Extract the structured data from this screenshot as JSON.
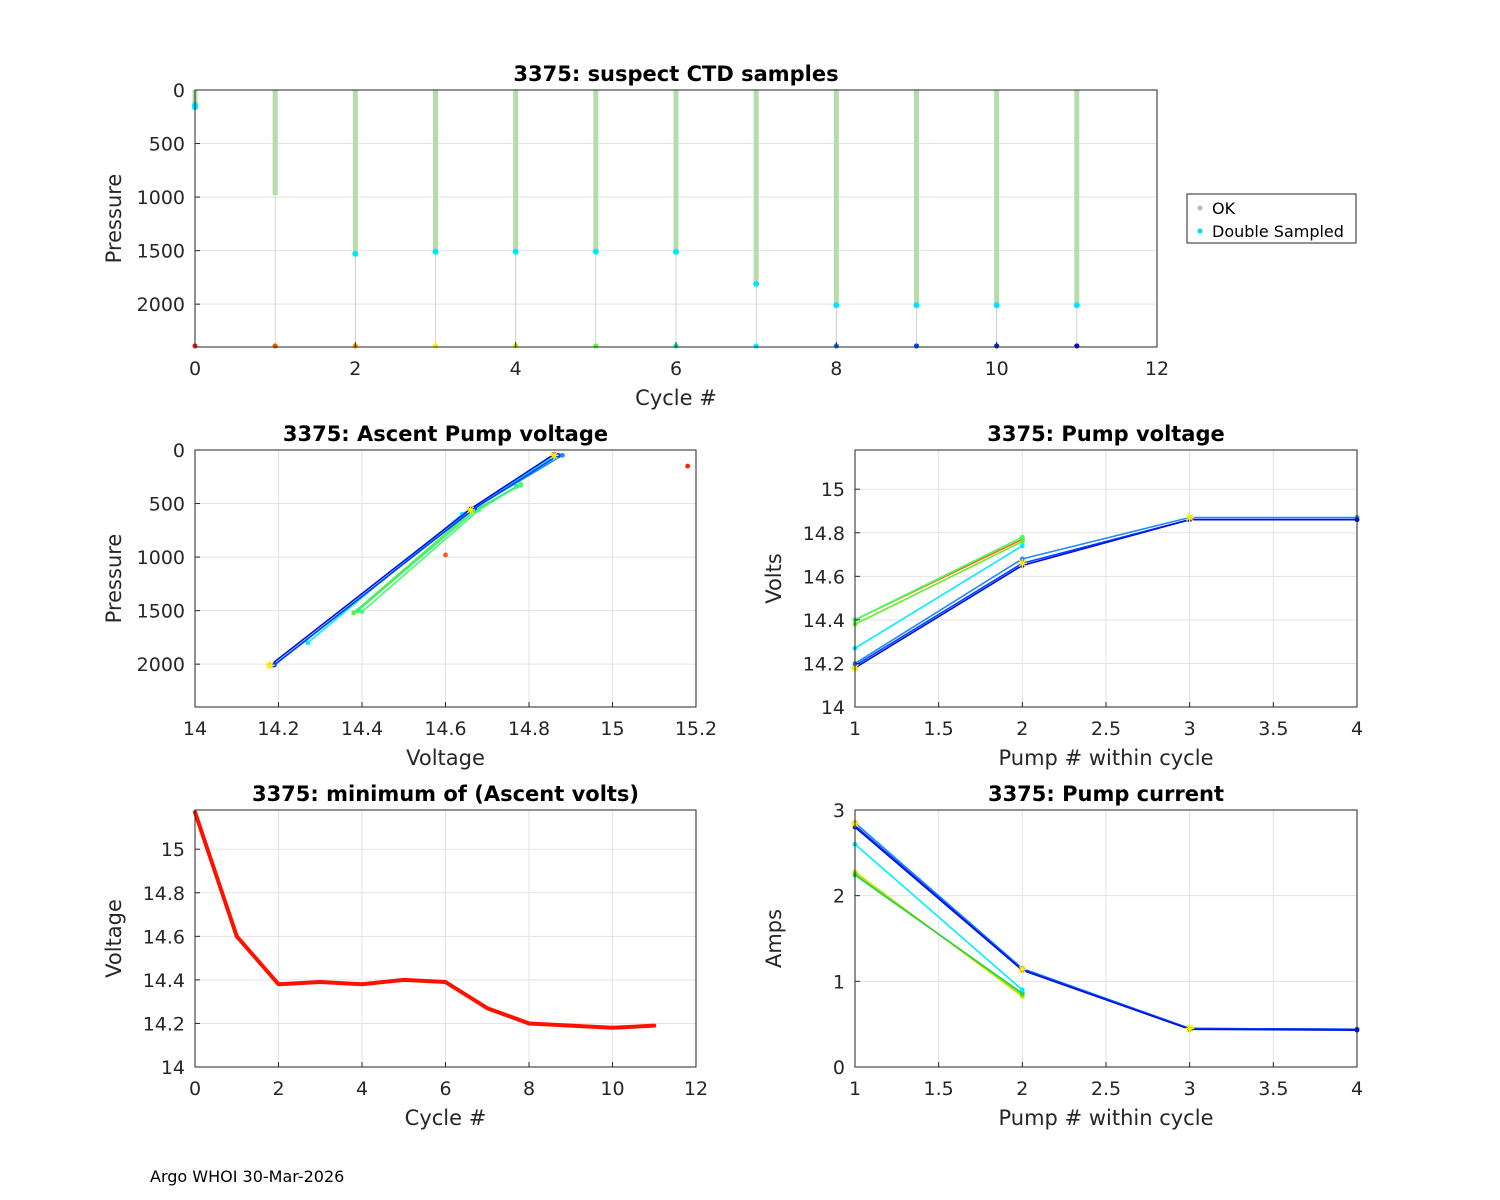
{
  "footer": "Argo WHOI 30-Mar-2026",
  "legend": {
    "entries": [
      {
        "label": "OK",
        "color": "#bdbdbd"
      },
      {
        "label": "Double Sampled",
        "color": "#00e5ff"
      }
    ]
  },
  "chart_data": [
    {
      "id": "ctd",
      "type": "scatter",
      "title": "3375: suspect CTD samples",
      "xlabel": "Cycle #",
      "ylabel": "Pressure",
      "xlim": [
        0,
        12
      ],
      "ylim": [
        0,
        2400
      ],
      "y_reversed": true,
      "xticks": [
        0,
        2,
        4,
        6,
        8,
        10,
        12
      ],
      "yticks": [
        0,
        500,
        1000,
        1500,
        2000
      ],
      "grid": true,
      "legend_position": "outside-right",
      "profile_color": "#b5dcaa",
      "ok_color": "#bdbdbd",
      "double_sampled_color": "#00e5ff",
      "profiles": [
        {
          "cycle": 0,
          "max_pressure": 150,
          "double_sampled": [
            140,
            160
          ]
        },
        {
          "cycle": 1,
          "max_pressure": 980,
          "double_sampled": []
        },
        {
          "cycle": 2,
          "max_pressure": 1530,
          "double_sampled": [
            1530
          ]
        },
        {
          "cycle": 3,
          "max_pressure": 1510,
          "double_sampled": [
            1510
          ]
        },
        {
          "cycle": 4,
          "max_pressure": 1510,
          "double_sampled": [
            1510
          ]
        },
        {
          "cycle": 5,
          "max_pressure": 1510,
          "double_sampled": [
            1510
          ]
        },
        {
          "cycle": 6,
          "max_pressure": 1510,
          "double_sampled": [
            1510
          ]
        },
        {
          "cycle": 7,
          "max_pressure": 1810,
          "double_sampled": [
            1810
          ]
        },
        {
          "cycle": 8,
          "max_pressure": 2010,
          "double_sampled": [
            2010
          ]
        },
        {
          "cycle": 9,
          "max_pressure": 2010,
          "double_sampled": [
            2010
          ]
        },
        {
          "cycle": 10,
          "max_pressure": 2010,
          "double_sampled": [
            2010
          ]
        },
        {
          "cycle": 11,
          "max_pressure": 2010,
          "double_sampled": [
            2010
          ]
        }
      ],
      "bottom_markers": {
        "pressure": 2390,
        "colors": [
          "#ff1a1a",
          "#ff5500",
          "#ff9900",
          "#ffee00",
          "#aaff00",
          "#55ff33",
          "#00ff99",
          "#00eeff",
          "#0077ff",
          "#0044ff",
          "#0022ee",
          "#0000dd"
        ]
      }
    },
    {
      "id": "ascent",
      "type": "line",
      "title": "3375: Ascent Pump voltage",
      "xlabel": "Voltage",
      "ylabel": "Pressure",
      "xlim": [
        14,
        15.2
      ],
      "ylim": [
        0,
        2400
      ],
      "y_reversed": true,
      "xticks": [
        14,
        14.2,
        14.4,
        14.6,
        14.8,
        15,
        15.2
      ],
      "yticks": [
        0,
        500,
        1000,
        1500,
        2000
      ],
      "grid": true,
      "series": [
        {
          "color": "#ff2200",
          "points": [
            [
              15.18,
              150
            ]
          ]
        },
        {
          "color": "#ff5522",
          "points": [
            [
              14.6,
              980
            ]
          ]
        },
        {
          "color": "#66ee33",
          "points": [
            [
              14.38,
              1520
            ],
            [
              14.66,
              580
            ],
            [
              14.78,
              330
            ]
          ]
        },
        {
          "color": "#44ff66",
          "points": [
            [
              14.4,
              1510
            ],
            [
              14.68,
              560
            ],
            [
              14.78,
              320
            ]
          ]
        },
        {
          "color": "#33ee88",
          "points": [
            [
              14.39,
              1500
            ],
            [
              14.67,
              570
            ],
            [
              14.77,
              340
            ]
          ]
        },
        {
          "color": "#00eeff",
          "points": [
            [
              14.27,
              1800
            ],
            [
              14.64,
              600
            ],
            [
              14.86,
              60
            ]
          ]
        },
        {
          "color": "#2288ff",
          "points": [
            [
              14.19,
              2010
            ],
            [
              14.67,
              540
            ],
            [
              14.88,
              50
            ]
          ]
        },
        {
          "color": "#0044ff",
          "points": [
            [
              14.19,
              2005
            ],
            [
              14.67,
              545
            ],
            [
              14.87,
              50
            ]
          ]
        },
        {
          "color": "#0011dd",
          "points": [
            [
              14.18,
              2010
            ],
            [
              14.66,
              550
            ],
            [
              14.86,
              40
            ]
          ]
        }
      ],
      "markers": [
        {
          "x": 14.18,
          "y": 2010,
          "color": "#ffee00"
        },
        {
          "x": 14.66,
          "y": 560,
          "color": "#ffee00"
        },
        {
          "x": 14.86,
          "y": 50,
          "color": "#ffee00"
        }
      ]
    },
    {
      "id": "pumpv",
      "type": "line",
      "title": "3375: Pump voltage",
      "xlabel": "Pump # within cycle",
      "ylabel": "Volts",
      "xlim": [
        1,
        4
      ],
      "ylim": [
        14,
        15.18
      ],
      "xticks": [
        1,
        1.5,
        2,
        2.5,
        3,
        3.5,
        4
      ],
      "yticks": [
        14,
        14.2,
        14.4,
        14.6,
        14.8,
        15
      ],
      "grid": true,
      "series": [
        {
          "color": "#ff6600",
          "points": [
            [
              1,
              14.4
            ],
            [
              2,
              14.77
            ]
          ]
        },
        {
          "color": "#66ee33",
          "points": [
            [
              1,
              14.38
            ],
            [
              2,
              14.76
            ]
          ]
        },
        {
          "color": "#44ff66",
          "points": [
            [
              1,
              14.4
            ],
            [
              2,
              14.78
            ]
          ]
        },
        {
          "color": "#00eeff",
          "points": [
            [
              1,
              14.27
            ],
            [
              2,
              14.74
            ]
          ]
        },
        {
          "color": "#2288ff",
          "points": [
            [
              1,
              14.2
            ],
            [
              2,
              14.68
            ],
            [
              3,
              14.87
            ],
            [
              4,
              14.87
            ]
          ]
        },
        {
          "color": "#0044ff",
          "points": [
            [
              1,
              14.19
            ],
            [
              2,
              14.66
            ],
            [
              3,
              14.86
            ],
            [
              4,
              14.86
            ]
          ]
        },
        {
          "color": "#0011dd",
          "points": [
            [
              1,
              14.18
            ],
            [
              2,
              14.65
            ],
            [
              3,
              14.86
            ],
            [
              4,
              14.86
            ]
          ]
        }
      ],
      "markers": [
        {
          "x": 1,
          "y": 14.18,
          "color": "#ffee00"
        },
        {
          "x": 2,
          "y": 14.66,
          "color": "#ffee00"
        },
        {
          "x": 3,
          "y": 14.87,
          "color": "#ffee00"
        }
      ]
    },
    {
      "id": "minv",
      "type": "line",
      "title": "3375: minimum of (Ascent volts)",
      "xlabel": "Cycle #",
      "ylabel": "Voltage",
      "xlim": [
        0,
        12
      ],
      "ylim": [
        14,
        15.18
      ],
      "xticks": [
        0,
        2,
        4,
        6,
        8,
        10,
        12
      ],
      "yticks": [
        14,
        14.2,
        14.4,
        14.6,
        14.8,
        15
      ],
      "grid": true,
      "series": [
        {
          "color": "#ff1100",
          "width": 4,
          "points": [
            [
              0,
              15.17
            ],
            [
              1,
              14.6
            ],
            [
              2,
              14.38
            ],
            [
              3,
              14.39
            ],
            [
              4,
              14.38
            ],
            [
              5,
              14.4
            ],
            [
              6,
              14.39
            ],
            [
              7,
              14.27
            ],
            [
              8,
              14.2
            ],
            [
              9,
              14.19
            ],
            [
              10,
              14.18
            ],
            [
              11,
              14.19
            ]
          ]
        }
      ],
      "markers": []
    },
    {
      "id": "pumpc",
      "type": "line",
      "title": "3375: Pump current",
      "xlabel": "Pump # within cycle",
      "ylabel": "Amps",
      "xlim": [
        1,
        4
      ],
      "ylim": [
        0,
        3
      ],
      "xticks": [
        1,
        1.5,
        2,
        2.5,
        3,
        3.5,
        4
      ],
      "yticks": [
        0,
        1,
        2,
        3
      ],
      "grid": true,
      "series": [
        {
          "color": "#ffdd00",
          "points": [
            [
              1,
              2.28
            ],
            [
              2,
              0.82
            ]
          ]
        },
        {
          "color": "#66ee33",
          "points": [
            [
              1,
              2.26
            ],
            [
              2,
              0.84
            ]
          ]
        },
        {
          "color": "#33cc44",
          "points": [
            [
              1,
              2.24
            ],
            [
              2,
              0.86
            ]
          ]
        },
        {
          "color": "#00eeff",
          "points": [
            [
              1,
              2.6
            ],
            [
              2,
              0.9
            ]
          ]
        },
        {
          "color": "#2288ff",
          "points": [
            [
              1,
              2.85
            ],
            [
              2,
              1.15
            ],
            [
              3,
              0.45
            ],
            [
              4,
              0.44
            ]
          ]
        },
        {
          "color": "#0044ff",
          "points": [
            [
              1,
              2.82
            ],
            [
              2,
              1.14
            ],
            [
              3,
              0.45
            ],
            [
              4,
              0.44
            ]
          ]
        },
        {
          "color": "#0011dd",
          "points": [
            [
              1,
              2.8
            ],
            [
              2,
              1.13
            ],
            [
              3,
              0.44
            ],
            [
              4,
              0.43
            ]
          ]
        }
      ],
      "markers": [
        {
          "x": 1,
          "y": 2.84,
          "color": "#ffee00"
        },
        {
          "x": 2,
          "y": 1.14,
          "color": "#ffee00"
        },
        {
          "x": 3,
          "y": 0.45,
          "color": "#ffee00"
        }
      ]
    }
  ]
}
